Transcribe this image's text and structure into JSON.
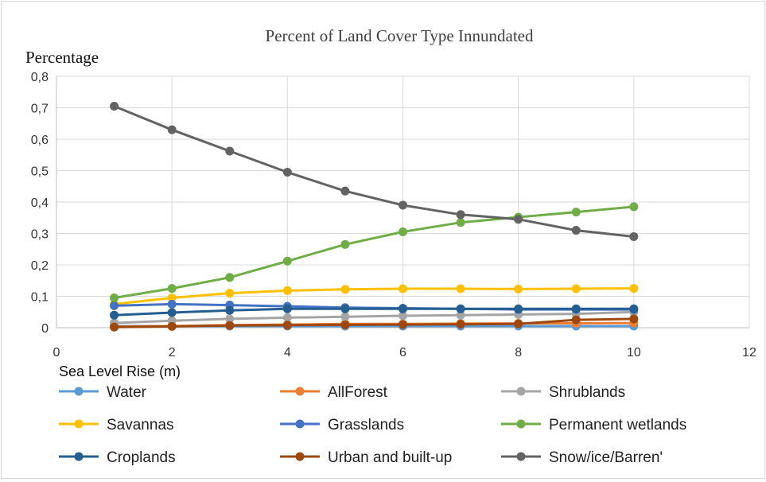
{
  "chart_data": {
    "type": "line",
    "title": "Percent of Land Cover Type Innundated",
    "ylabel": "Percentage",
    "xlabel": "Sea Level Rise (m)",
    "xlim": [
      0,
      12
    ],
    "ylim": [
      0,
      0.8
    ],
    "x_ticks": [
      "0",
      "2",
      "4",
      "6",
      "8",
      "10",
      "12"
    ],
    "y_ticks": [
      "0",
      "0,1",
      "0,2",
      "0,3",
      "0,4",
      "0,5",
      "0,6",
      "0,7",
      "0,8"
    ],
    "grid": true,
    "legend_position": "bottom",
    "x": [
      1,
      2,
      3,
      4,
      5,
      6,
      7,
      8,
      9,
      10
    ],
    "series": [
      {
        "name": "Water",
        "color": "#5B9BD5",
        "values": [
          0.005,
          0.005,
          0.005,
          0.005,
          0.005,
          0.005,
          0.005,
          0.005,
          0.005,
          0.005
        ]
      },
      {
        "name": "AllForest",
        "color": "#ED7D31",
        "values": [
          0.003,
          0.005,
          0.008,
          0.01,
          0.012,
          0.012,
          0.013,
          0.014,
          0.014,
          0.015
        ]
      },
      {
        "name": "Shrublands",
        "color": "#A5A5A5",
        "values": [
          0.015,
          0.022,
          0.028,
          0.032,
          0.035,
          0.038,
          0.04,
          0.042,
          0.044,
          0.05
        ]
      },
      {
        "name": "Savannas",
        "color": "#FFC000",
        "values": [
          0.075,
          0.095,
          0.11,
          0.118,
          0.122,
          0.124,
          0.124,
          0.123,
          0.124,
          0.125
        ]
      },
      {
        "name": "Grasslands",
        "color": "#4472C4",
        "values": [
          0.07,
          0.075,
          0.072,
          0.068,
          0.064,
          0.062,
          0.06,
          0.058,
          0.058,
          0.058
        ]
      },
      {
        "name": "Permanent wetlands",
        "color": "#70AD47",
        "values": [
          0.095,
          0.125,
          0.16,
          0.212,
          0.265,
          0.305,
          0.335,
          0.352,
          0.368,
          0.385
        ]
      },
      {
        "name": "Croplands",
        "color": "#255E91",
        "values": [
          0.04,
          0.048,
          0.055,
          0.06,
          0.06,
          0.06,
          0.06,
          0.06,
          0.06,
          0.06
        ]
      },
      {
        "name": "Urban and built-up",
        "color": "#9E480E",
        "values": [
          0.002,
          0.004,
          0.007,
          0.008,
          0.009,
          0.01,
          0.011,
          0.012,
          0.025,
          0.028
        ]
      },
      {
        "name": "Snow/ice/Barren'",
        "color": "#636363",
        "values": [
          0.705,
          0.63,
          0.562,
          0.495,
          0.435,
          0.39,
          0.36,
          0.345,
          0.31,
          0.29
        ]
      }
    ]
  }
}
